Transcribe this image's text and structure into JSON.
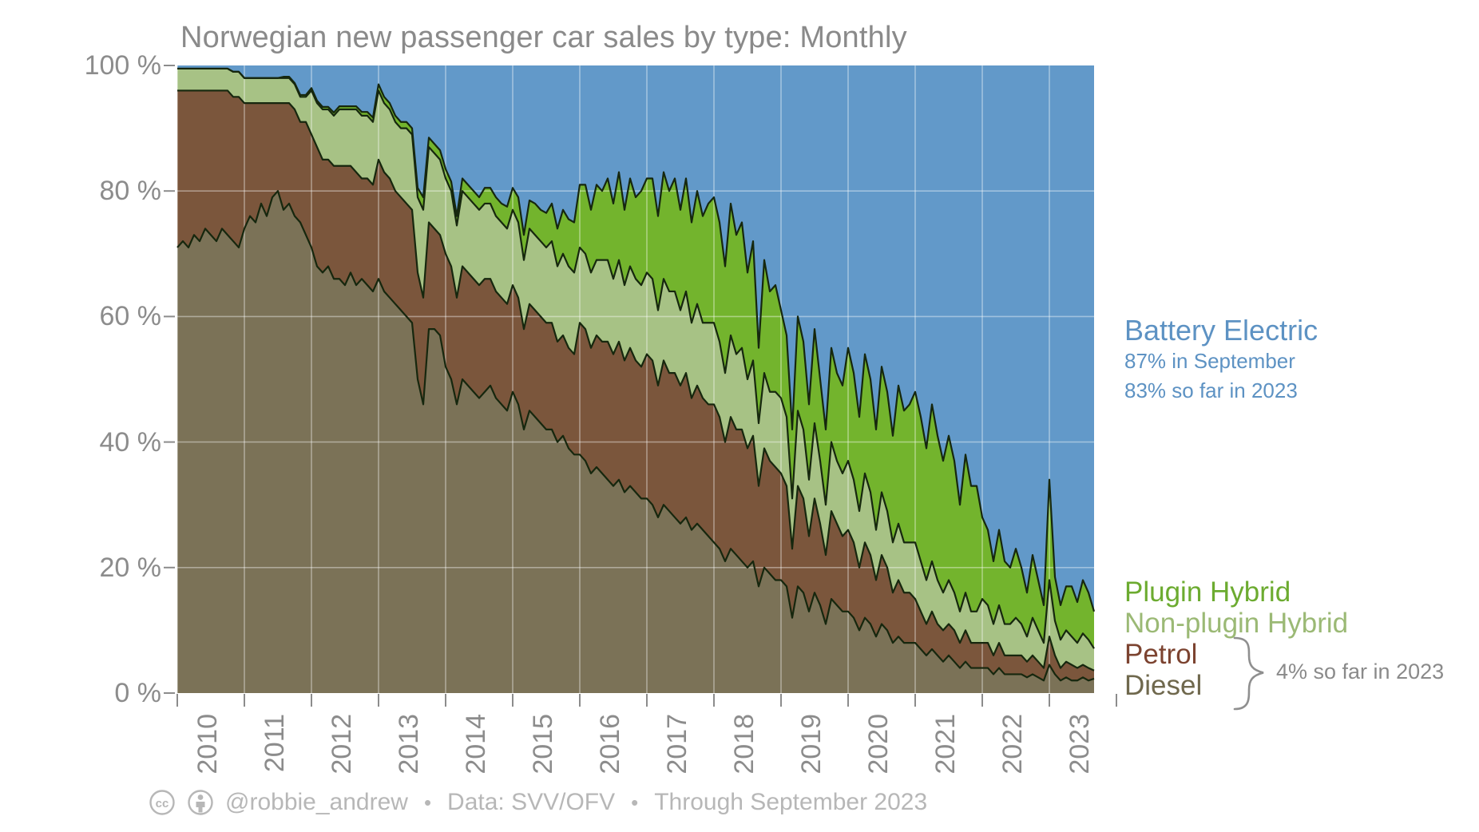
{
  "title": "Norwegian new passenger car sales by type: Monthly",
  "y_axis": {
    "labels": [
      "100 %",
      "80 %",
      "60 %",
      "40 %",
      "20 %",
      "0 %"
    ],
    "values": [
      100,
      80,
      60,
      40,
      20,
      0
    ]
  },
  "x_axis": {
    "year_labels": [
      "2010",
      "2011",
      "2012",
      "2013",
      "2014",
      "2015",
      "2016",
      "2017",
      "2018",
      "2019",
      "2020",
      "2021",
      "2022",
      "2023"
    ]
  },
  "legend": {
    "battery": {
      "label": "Battery Electric",
      "note1": "87% in September",
      "note2": "83% so far in 2023",
      "color": "#5d92c3"
    },
    "plugin_label": "Plugin Hybrid",
    "nonplugin_label": "Non-plugin Hybrid",
    "petrol_label": "Petrol",
    "diesel_label": "Diesel",
    "brace_note": "4% so far in 2023"
  },
  "footer": {
    "handle": "@robbie_andrew",
    "sep1": "•",
    "source": "Data: SVV/OFV",
    "sep2": "•",
    "through": "Through September 2023"
  },
  "colors": {
    "battery_fill": "#6299c9",
    "plugin_fill": "#73b42d",
    "nonplugin_fill": "#a7c285",
    "petrol_fill": "#7b563c",
    "diesel_fill": "#7b7257",
    "boundary_stroke": "#16270e",
    "gridline": "#ffffff",
    "tick": "#8c8c8c",
    "axis_text": "#8c8c8c",
    "title_text": "#8a8a8a",
    "footer_text": "#b7b7b7"
  },
  "chart_data": {
    "type": "area",
    "stacked": true,
    "title": "Norwegian new passenger car sales by type: Monthly",
    "xlabel": "",
    "ylabel": "",
    "unit": "percent share of monthly new passenger car sales",
    "ylim": [
      0,
      100
    ],
    "x_start": "2010-01",
    "x_end": "2023-09",
    "x_step": "month",
    "n_points": 165,
    "grid": true,
    "legend_position": "right",
    "annotations": [
      "87% in September",
      "83% so far in 2023",
      "4% so far in 2023"
    ],
    "series": [
      {
        "name": "Diesel",
        "color": "#7b7257",
        "values": [
          71,
          72,
          71,
          73,
          72,
          74,
          73,
          72,
          74,
          73,
          72,
          71,
          74,
          76,
          75,
          78,
          76,
          79,
          80,
          77,
          78,
          76,
          75,
          73,
          71,
          68,
          67,
          68,
          66,
          66,
          65,
          67,
          65,
          66,
          65,
          64,
          66,
          64,
          63,
          62,
          61,
          60,
          59,
          50,
          46,
          58,
          58,
          57,
          52,
          50,
          46,
          50,
          49,
          48,
          47,
          48,
          49,
          47,
          46,
          45,
          48,
          46,
          42,
          45,
          44,
          43,
          42,
          42,
          40,
          41,
          39,
          38,
          38,
          37,
          35,
          36,
          35,
          34,
          33,
          34,
          32,
          33,
          32,
          31,
          31,
          30,
          28,
          30,
          29,
          28,
          27,
          28,
          26,
          27,
          26,
          25,
          24,
          23,
          21,
          23,
          22,
          21,
          20,
          21,
          17,
          20,
          19,
          18,
          18,
          17,
          12,
          17,
          16,
          13,
          16,
          14,
          11,
          15,
          14,
          13,
          13,
          12,
          10,
          12,
          11,
          9,
          11,
          10,
          8,
          9,
          8,
          8,
          8,
          7,
          6,
          7,
          6,
          5,
          6,
          5,
          4,
          5,
          4,
          4,
          4,
          4,
          3,
          4,
          3,
          3,
          3,
          3,
          2.5,
          3,
          2.5,
          2,
          4.5,
          3,
          2,
          2.5,
          2,
          2,
          2.5,
          2,
          2.3
        ]
      },
      {
        "name": "Petrol",
        "color": "#7b563c",
        "values": [
          25,
          24,
          25,
          23,
          24,
          22,
          23,
          24,
          22,
          23,
          23,
          24,
          20,
          18,
          19,
          16,
          18,
          15,
          14,
          17,
          16,
          17,
          16,
          18,
          18,
          19,
          18,
          17,
          18,
          18,
          19,
          17,
          18,
          16,
          17,
          17,
          19,
          19,
          19,
          18,
          18,
          18,
          18,
          17,
          17,
          17,
          16,
          16,
          18,
          18,
          17,
          18,
          18,
          18,
          18,
          18,
          17,
          17,
          17,
          17,
          17,
          17,
          16,
          17,
          17,
          17,
          17,
          17,
          16,
          16,
          16,
          16,
          21,
          21,
          20,
          21,
          21,
          22,
          21,
          22,
          21,
          22,
          21,
          21,
          23,
          23,
          21,
          23,
          22,
          23,
          22,
          23,
          21,
          22,
          21,
          21,
          22,
          21,
          19,
          21,
          20,
          21,
          19,
          20,
          16,
          19,
          18,
          18,
          17,
          16,
          11,
          16,
          15,
          12,
          15,
          13,
          11,
          14,
          13,
          12,
          13,
          12,
          10,
          12,
          11,
          9,
          11,
          10,
          8,
          9,
          8,
          8,
          7,
          6,
          5,
          6,
          5,
          5,
          5,
          5,
          4,
          5,
          4,
          4,
          4,
          4,
          3,
          4,
          3,
          3,
          3,
          3,
          2.5,
          3,
          2.5,
          2,
          4.5,
          3,
          2,
          2.5,
          2.5,
          2,
          2,
          2,
          1.3
        ]
      },
      {
        "name": "Non-plugin Hybrid",
        "color": "#a7c285",
        "values": [
          3.5,
          3.5,
          3.5,
          3.5,
          3.5,
          3.5,
          3.5,
          3.5,
          3.5,
          3.5,
          4,
          4,
          4,
          4,
          4,
          4,
          4,
          4,
          4,
          4,
          4,
          4,
          4,
          4,
          7,
          7,
          8,
          8,
          8,
          9,
          9,
          9,
          10,
          10,
          10,
          10,
          11,
          11,
          11,
          11,
          11,
          12,
          12,
          12,
          14,
          12,
          12,
          12,
          12,
          12,
          11.5,
          12,
          12,
          12,
          12,
          12,
          12,
          12,
          12,
          12,
          12,
          12,
          11,
          12,
          12,
          12,
          12,
          13,
          12,
          13,
          13,
          13,
          12,
          12,
          12,
          12,
          13,
          13,
          12,
          13,
          12,
          13,
          13,
          13,
          13,
          13,
          12,
          13,
          13,
          13,
          12,
          13,
          12,
          13,
          12,
          13,
          13,
          12,
          11,
          13,
          12,
          13,
          11,
          12,
          10,
          12,
          11,
          12,
          12,
          11,
          8,
          12,
          11,
          9,
          12,
          10,
          8,
          11,
          10,
          10,
          11,
          10,
          9,
          11,
          10,
          8,
          10,
          9,
          8,
          9,
          8,
          8,
          9,
          8,
          7,
          8,
          7,
          6,
          7,
          6,
          5,
          6,
          5,
          5,
          7,
          6,
          5,
          6,
          5,
          5,
          6,
          5,
          4,
          6,
          5,
          4,
          9,
          5.5,
          4.5,
          5,
          4.5,
          4,
          5,
          4.5,
          3.5
        ]
      },
      {
        "name": "Plugin Hybrid",
        "color": "#73b42d",
        "values": [
          0,
          0,
          0,
          0,
          0,
          0,
          0,
          0,
          0,
          0,
          0,
          0,
          0,
          0,
          0,
          0,
          0,
          0,
          0,
          0.2,
          0.2,
          0.2,
          0.3,
          0.3,
          0.4,
          0.4,
          0.4,
          0.4,
          0.5,
          0.5,
          0.5,
          0.5,
          0.5,
          0.6,
          0.6,
          0.7,
          1,
          1,
          1,
          1,
          1,
          1,
          1,
          1.5,
          2,
          1.5,
          1.5,
          1.5,
          1.5,
          1.5,
          1.5,
          2,
          2,
          2,
          2,
          2.5,
          2.5,
          3,
          3,
          3.5,
          3.5,
          4,
          4,
          4.5,
          5,
          5,
          5.5,
          6,
          6,
          7,
          7.5,
          8,
          10,
          11,
          10,
          12,
          11,
          13,
          12,
          14,
          12,
          14,
          13,
          15,
          15,
          16,
          15,
          17,
          16,
          18,
          16,
          18,
          16,
          18,
          17,
          19,
          20,
          19,
          17,
          21,
          19,
          20,
          17,
          19,
          12,
          18,
          16,
          17,
          14,
          13,
          11,
          15,
          14,
          12,
          15,
          13,
          12,
          15,
          14,
          14,
          18,
          17,
          15,
          19,
          18,
          16,
          20,
          19,
          17,
          22,
          21,
          22,
          24,
          23,
          21,
          25,
          23,
          21,
          23,
          21,
          17,
          22,
          20,
          20,
          13,
          12,
          10,
          12,
          10,
          9,
          11,
          9,
          7,
          10,
          8,
          6,
          16,
          7,
          5.5,
          7,
          8,
          6.5,
          8.5,
          7.5,
          5.9
        ]
      },
      {
        "name": "Battery Electric",
        "color": "#6299c9",
        "values": [
          0.5,
          0.5,
          0.5,
          0.5,
          0.5,
          0.5,
          0.5,
          0.5,
          0.5,
          0.5,
          1,
          1,
          2,
          2,
          2,
          2,
          2,
          2,
          2,
          1.8,
          1.8,
          2.8,
          4.7,
          4.7,
          3.6,
          5.6,
          6.6,
          6.6,
          7.5,
          6.5,
          6.5,
          6.5,
          6.5,
          7.4,
          7.4,
          8.3,
          3,
          5,
          6,
          8,
          9,
          9,
          10,
          19.5,
          21,
          11.5,
          12.5,
          13.5,
          16.5,
          18.5,
          24,
          18,
          19,
          20,
          21,
          19.5,
          19.5,
          21,
          22,
          22.5,
          19.5,
          21,
          27,
          21.5,
          22,
          23,
          23.5,
          22,
          26,
          23,
          24.5,
          25,
          19,
          19,
          23,
          19,
          20,
          18,
          22,
          17,
          23,
          18,
          21,
          20,
          18,
          18,
          24,
          17,
          20,
          18,
          23,
          18,
          25,
          20,
          24,
          22,
          21,
          25,
          32,
          22,
          27,
          25,
          33,
          28,
          45,
          31,
          36,
          35,
          39,
          43,
          58,
          40,
          44,
          54,
          42,
          50,
          58,
          45,
          49,
          51,
          45,
          49,
          56,
          46,
          50,
          58,
          48,
          52,
          59,
          51,
          55,
          54,
          52,
          56,
          61,
          54,
          59,
          63,
          59,
          63,
          70,
          62,
          67,
          67,
          72,
          74,
          79,
          74,
          79,
          80,
          77,
          80,
          84,
          78,
          82,
          86,
          66,
          81.5,
          86,
          83,
          83,
          85.5,
          82,
          84,
          87
        ]
      }
    ]
  }
}
